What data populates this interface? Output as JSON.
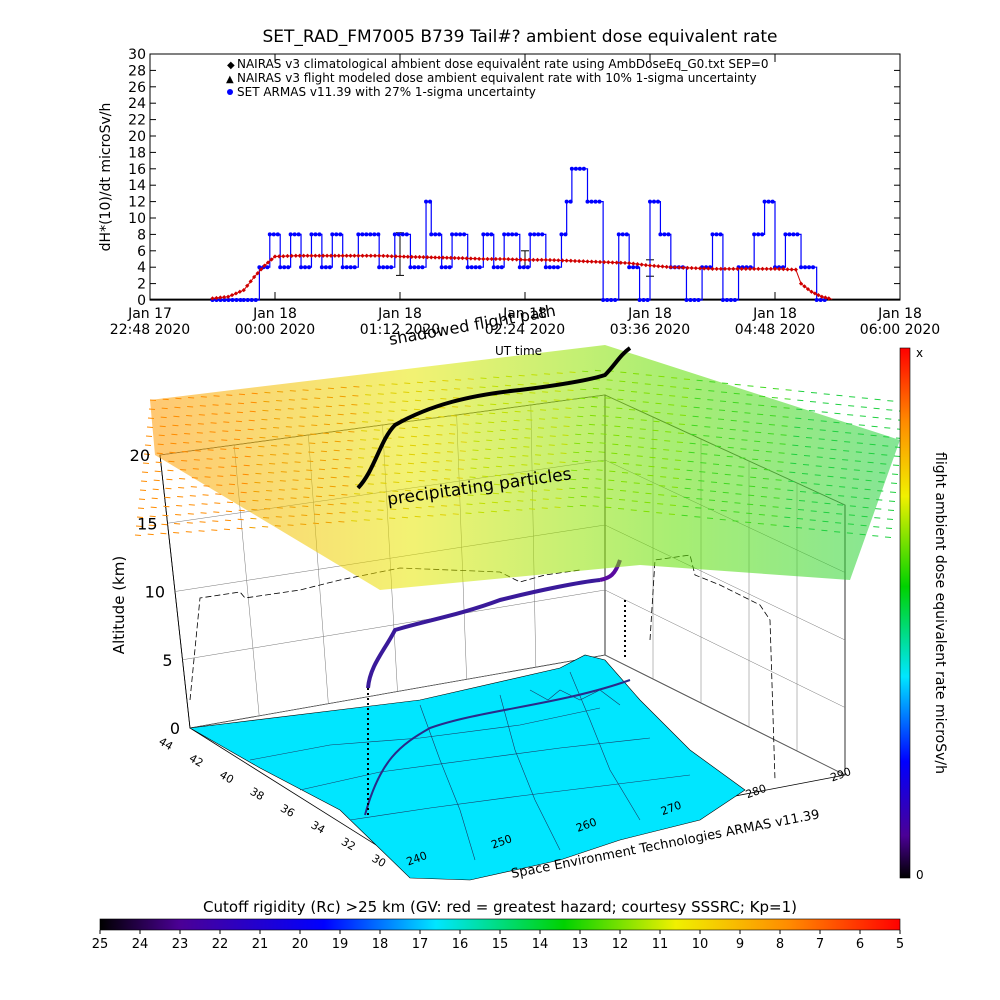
{
  "figure": {
    "title": "SET_RAD_FM7005  B739 Tail#? ambient dose equivalent rate",
    "footer_credit": "Space Environment Technologies ARMAS v11.39",
    "palette": {
      "blue_series": "#0000ff",
      "red_series": "#d00000",
      "black_series": "#000000",
      "ground_fill": "#00e6ff"
    }
  },
  "chart_data": [
    {
      "type": "line",
      "title": "SET_RAD_FM7005  B739 Tail#? ambient dose equivalent rate",
      "ylabel": "dH*(10)/dt microSv/h",
      "xlabel": "UT time",
      "ylim": [
        0,
        30
      ],
      "yticks": [
        0,
        2,
        4,
        6,
        8,
        10,
        12,
        14,
        16,
        18,
        20,
        22,
        24,
        26,
        28,
        30
      ],
      "xlim_hours": [
        -1.2,
        6.0
      ],
      "xticks": [
        {
          "h": -1.2,
          "line1": "Jan 17",
          "line2": "22:48 2020"
        },
        {
          "h": 0.0,
          "line1": "Jan 18",
          "line2": "00:00 2020"
        },
        {
          "h": 1.2,
          "line1": "Jan 18",
          "line2": "01:12 2020"
        },
        {
          "h": 2.4,
          "line1": "Jan 18",
          "line2": "02:24 2020"
        },
        {
          "h": 3.6,
          "line1": "Jan 18",
          "line2": "03:36 2020"
        },
        {
          "h": 4.8,
          "line1": "Jan 18",
          "line2": "04:48 2020"
        },
        {
          "h": 6.0,
          "line1": "Jan 18",
          "line2": "06:00 2020"
        }
      ],
      "legend_position": "top-center",
      "series": [
        {
          "name": "NAIRAS v3 climatological ambient dose equivalent rate using AmbDoseEq_G0.txt SEP=0",
          "marker": "diamond",
          "color": "#d00000",
          "x": [
            -0.6,
            -0.45,
            -0.3,
            -0.2,
            -0.1,
            0.0,
            0.2,
            0.5,
            0.8,
            1.0,
            1.2,
            1.5,
            1.8,
            2.0,
            2.2,
            2.4,
            2.6,
            2.8,
            3.0,
            3.2,
            3.4,
            3.6,
            3.8,
            4.0,
            4.2,
            4.4,
            4.6,
            4.8,
            5.0,
            5.05,
            5.15,
            5.25,
            5.35
          ],
          "y": [
            0.2,
            0.4,
            1.2,
            2.8,
            4.2,
            5.3,
            5.4,
            5.4,
            5.4,
            5.4,
            5.3,
            5.2,
            5.1,
            5.0,
            5.0,
            4.9,
            4.9,
            4.8,
            4.7,
            4.6,
            4.5,
            4.2,
            4.0,
            3.9,
            3.8,
            3.8,
            3.8,
            3.8,
            3.7,
            2.0,
            1.0,
            0.4,
            0.1
          ]
        },
        {
          "name": "NAIRAS v3 flight modeled dose ambient equivalent rate with 10% 1-sigma uncertainty",
          "marker": "triangle",
          "color": "#000000",
          "x": [
            -1.2,
            6.0
          ],
          "y": [
            0.05,
            0.05
          ],
          "error_bars": [
            {
              "x": 1.2,
              "y": 5.6,
              "err": 2.6
            },
            {
              "x": 2.4,
              "y": 5.0,
              "err": 1.0
            },
            {
              "x": 3.6,
              "y": 3.9,
              "err": 1.0
            }
          ]
        },
        {
          "name": "SET ARMAS v11.39 with 27% 1-sigma uncertainty",
          "marker": "circle",
          "color": "#0000ff",
          "x": [
            -0.6,
            -0.3,
            -0.15,
            -0.05,
            0.05,
            0.15,
            0.25,
            0.35,
            0.45,
            0.55,
            0.65,
            0.8,
            1.0,
            1.15,
            1.3,
            1.45,
            1.5,
            1.6,
            1.7,
            1.85,
            2.0,
            2.1,
            2.2,
            2.35,
            2.45,
            2.6,
            2.75,
            2.8,
            2.85,
            3.0,
            3.15,
            3.3,
            3.4,
            3.5,
            3.6,
            3.7,
            3.8,
            3.95,
            4.1,
            4.2,
            4.3,
            4.45,
            4.6,
            4.7,
            4.8,
            4.9,
            5.05,
            5.2,
            5.3
          ],
          "y": [
            0,
            0,
            4,
            8,
            4,
            8,
            4,
            8,
            4,
            8,
            4,
            8,
            4,
            8,
            4,
            12,
            8,
            4,
            8,
            4,
            8,
            4,
            8,
            4,
            8,
            4,
            8,
            12,
            16,
            12,
            0,
            8,
            4,
            0,
            12,
            8,
            4,
            0,
            4,
            8,
            0,
            4,
            8,
            12,
            4,
            8,
            4,
            0,
            0
          ]
        }
      ]
    },
    {
      "type": "scatter",
      "title": "",
      "zlabel": "Altitude (km)",
      "zlim": [
        0,
        20
      ],
      "zticks": [
        0,
        5,
        10,
        15,
        20
      ],
      "lat_ticks": [
        44,
        42,
        40,
        38,
        36,
        34,
        32,
        30
      ],
      "lon_ticks": [
        240,
        250,
        260,
        270,
        280,
        290
      ],
      "annotations": [
        "shadowed flight path",
        "UT time",
        "precipitating particles"
      ],
      "colorbar": {
        "label": "flight ambient dose equivalent rate microSv/h",
        "top": "x",
        "bottom": "0"
      },
      "flight_path": {
        "lon": [
          242,
          244,
          246,
          248,
          250,
          252,
          254,
          256,
          258,
          260,
          262,
          264,
          266,
          268,
          270,
          272,
          274
        ],
        "lat": [
          33.4,
          34.0,
          35.0,
          36.2,
          37.3,
          38.2,
          38.8,
          39.3,
          39.8,
          40.2,
          40.6,
          41.0,
          41.3,
          41.6,
          41.9,
          42.1,
          42.3
        ],
        "alt_km": [
          0.5,
          2.0,
          5.0,
          7.0,
          8.0,
          8.5,
          9.0,
          9.5,
          10.0,
          10.5,
          10.8,
          11.0,
          11.0,
          11.2,
          11.5,
          11.8,
          12.0
        ]
      }
    },
    {
      "type": "heatmap",
      "title": "Cutoff rigidity (Rc) >25 km (GV: red = greatest hazard; courtesy SSSRC; Kp=1)",
      "colorbar_ticks": [
        "25",
        "24",
        "23",
        "22",
        "21",
        "20",
        "19",
        "18",
        "17",
        "16",
        "15",
        "14",
        "13",
        "12",
        "11",
        "10",
        "9",
        "8",
        "7",
        "6",
        "5"
      ]
    }
  ]
}
